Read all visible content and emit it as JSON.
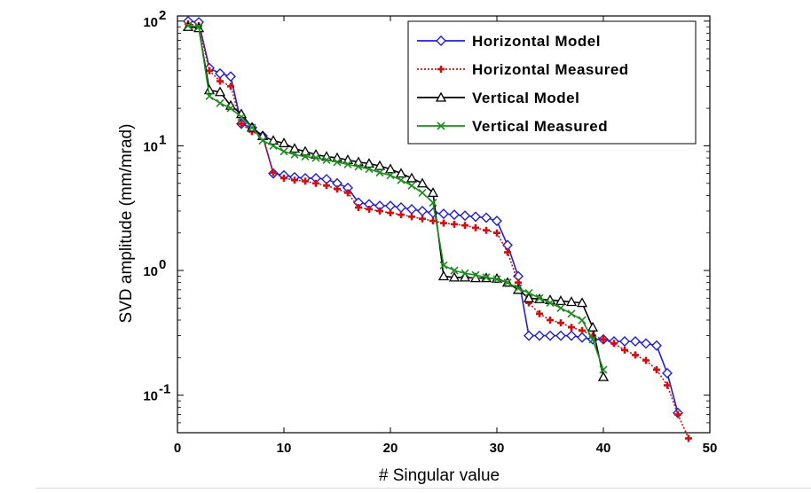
{
  "chart_data": {
    "type": "line",
    "title": "",
    "xlabel": "# Singular value",
    "ylabel": "SVD amplitude (mm/mrad)",
    "xlim": [
      0,
      50
    ],
    "ylim": [
      0.05,
      110
    ],
    "yscale": "log",
    "x_ticks": [
      0,
      10,
      20,
      30,
      40,
      50
    ],
    "x_tick_labels": [
      "0",
      "10",
      "20",
      "30",
      "40",
      "50"
    ],
    "y_ticks": [
      0.1,
      1,
      10,
      100
    ],
    "y_tick_labels": [
      {
        "base": "10",
        "exp": "-1"
      },
      {
        "base": "10",
        "exp": "0"
      },
      {
        "base": "10",
        "exp": "1"
      },
      {
        "base": "10",
        "exp": "2"
      }
    ],
    "grid": false,
    "legend_position": "top-right",
    "series": [
      {
        "name": "Horizontal Model",
        "color": "#1f1fd0",
        "line_style": "solid",
        "marker": "diamond",
        "marker_fill": "none",
        "x": [
          1,
          2,
          3,
          4,
          5,
          6,
          7,
          8,
          9,
          10,
          11,
          12,
          13,
          14,
          15,
          16,
          17,
          18,
          19,
          20,
          21,
          22,
          23,
          24,
          25,
          26,
          27,
          28,
          29,
          30,
          31,
          32,
          33,
          34,
          35,
          36,
          37,
          38,
          39,
          40,
          41,
          42,
          43,
          44,
          45,
          46,
          47
        ],
        "y": [
          100,
          98,
          42,
          38,
          36,
          15,
          14,
          12,
          6,
          5.8,
          5.6,
          5.5,
          5.5,
          5.4,
          5.0,
          4.6,
          3.5,
          3.4,
          3.3,
          3.3,
          3.2,
          3.1,
          3.0,
          2.9,
          2.85,
          2.8,
          2.75,
          2.7,
          2.65,
          2.5,
          1.6,
          0.9,
          0.3,
          0.3,
          0.3,
          0.3,
          0.3,
          0.29,
          0.28,
          0.28,
          0.27,
          0.27,
          0.27,
          0.26,
          0.25,
          0.15,
          0.072
        ]
      },
      {
        "name": "Horizontal Measured",
        "color": "#d01010",
        "line_style": "dotted",
        "marker": "plus",
        "marker_fill": "solid",
        "x": [
          1,
          2,
          3,
          4,
          5,
          6,
          7,
          8,
          9,
          10,
          11,
          12,
          13,
          14,
          15,
          16,
          17,
          18,
          19,
          20,
          21,
          22,
          23,
          24,
          25,
          26,
          27,
          28,
          29,
          30,
          31,
          32,
          33,
          34,
          35,
          36,
          37,
          38,
          39,
          40,
          41,
          42,
          43,
          44,
          45,
          46,
          47,
          48
        ],
        "y": [
          95,
          92,
          40,
          33,
          30,
          15,
          13,
          12,
          6.1,
          5.5,
          5.3,
          5.2,
          5.0,
          4.8,
          4.5,
          4.2,
          3.2,
          3.1,
          3.0,
          2.9,
          2.8,
          2.7,
          2.6,
          2.5,
          2.4,
          2.35,
          2.3,
          2.2,
          2.1,
          2.0,
          1.4,
          0.8,
          0.55,
          0.45,
          0.4,
          0.38,
          0.35,
          0.33,
          0.3,
          0.28,
          0.26,
          0.23,
          0.21,
          0.19,
          0.16,
          0.12,
          0.07,
          0.045
        ]
      },
      {
        "name": "Vertical Model",
        "color": "#000000",
        "line_style": "solid",
        "marker": "triangle",
        "marker_fill": "none",
        "x": [
          1,
          2,
          3,
          4,
          5,
          6,
          7,
          8,
          9,
          10,
          11,
          12,
          13,
          14,
          15,
          16,
          17,
          18,
          19,
          20,
          21,
          22,
          23,
          24,
          25,
          26,
          27,
          28,
          29,
          30,
          31,
          32,
          33,
          34,
          35,
          36,
          37,
          38,
          39,
          40
        ],
        "y": [
          90,
          88,
          28,
          27,
          21,
          18,
          14,
          12,
          11,
          10.5,
          9.5,
          9,
          8.5,
          8.2,
          8,
          7.7,
          7.4,
          7.2,
          6.9,
          6.5,
          6,
          5.5,
          5,
          4.2,
          0.9,
          0.88,
          0.88,
          0.87,
          0.87,
          0.86,
          0.8,
          0.7,
          0.6,
          0.59,
          0.58,
          0.57,
          0.56,
          0.55,
          0.35,
          0.14
        ]
      },
      {
        "name": "Vertical Measured",
        "color": "#1e8c1e",
        "line_style": "solid",
        "marker": "x",
        "marker_fill": "solid",
        "x": [
          1,
          2,
          3,
          4,
          5,
          6,
          7,
          8,
          9,
          10,
          11,
          12,
          13,
          14,
          15,
          16,
          17,
          18,
          19,
          20,
          21,
          22,
          23,
          24,
          25,
          26,
          27,
          28,
          29,
          30,
          31,
          32,
          33,
          34,
          35,
          36,
          37,
          38,
          39,
          40
        ],
        "y": [
          92,
          90,
          25,
          22,
          20,
          17,
          14,
          11,
          10,
          9,
          8.5,
          8.2,
          8,
          7.7,
          7.4,
          7.1,
          6.8,
          6.5,
          6.1,
          5.8,
          5.3,
          4.8,
          4.2,
          3.5,
          1.1,
          1.0,
          0.95,
          0.92,
          0.88,
          0.85,
          0.8,
          0.72,
          0.66,
          0.6,
          0.55,
          0.5,
          0.45,
          0.4,
          0.28,
          0.16
        ]
      }
    ]
  }
}
